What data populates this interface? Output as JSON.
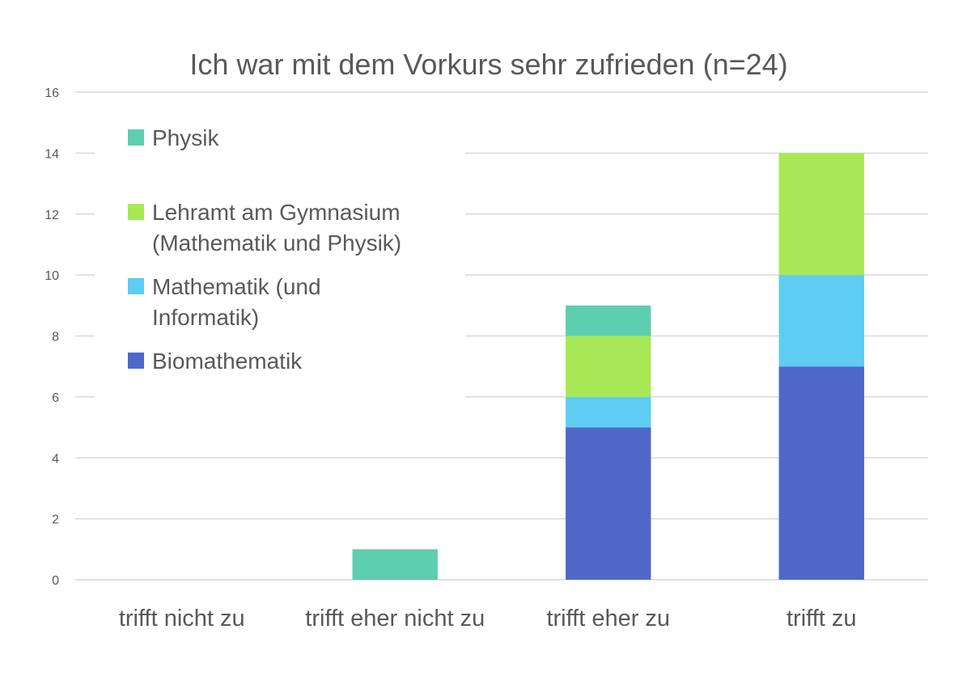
{
  "chart_data": {
    "type": "bar",
    "stacked": true,
    "title": "Ich war mit dem Vorkurs sehr zufrieden (n=24)",
    "xlabel": "",
    "ylabel": "",
    "categories": [
      "trifft nicht zu",
      "trifft eher nicht zu",
      "trifft eher zu",
      "trifft zu"
    ],
    "ylim": [
      0,
      16
    ],
    "yticks": [
      0,
      2,
      4,
      6,
      8,
      10,
      12,
      14,
      16
    ],
    "grid": true,
    "legend_position": "top-left",
    "series": [
      {
        "name": "Biomathematik",
        "color": "#4F68C8",
        "values": [
          0,
          0,
          5,
          7
        ]
      },
      {
        "name": "Mathematik (und Informatik)",
        "legend_lines": [
          "Mathematik (und",
          "Informatik)"
        ],
        "color": "#5ECCF3",
        "values": [
          0,
          0,
          1,
          3
        ]
      },
      {
        "name": "Lehramt am Gymnasium (Mathematik und Physik)",
        "legend_lines": [
          "Lehramt am Gymnasium",
          "(Mathematik und Physik)"
        ],
        "color": "#A8E854",
        "values": [
          0,
          0,
          2,
          4
        ]
      },
      {
        "name": "Physik",
        "legend_lines": [
          "Physik"
        ],
        "color": "#5ECEB0",
        "values": [
          0,
          1,
          1,
          0
        ]
      }
    ],
    "legend_order": [
      3,
      2,
      1,
      0
    ]
  }
}
